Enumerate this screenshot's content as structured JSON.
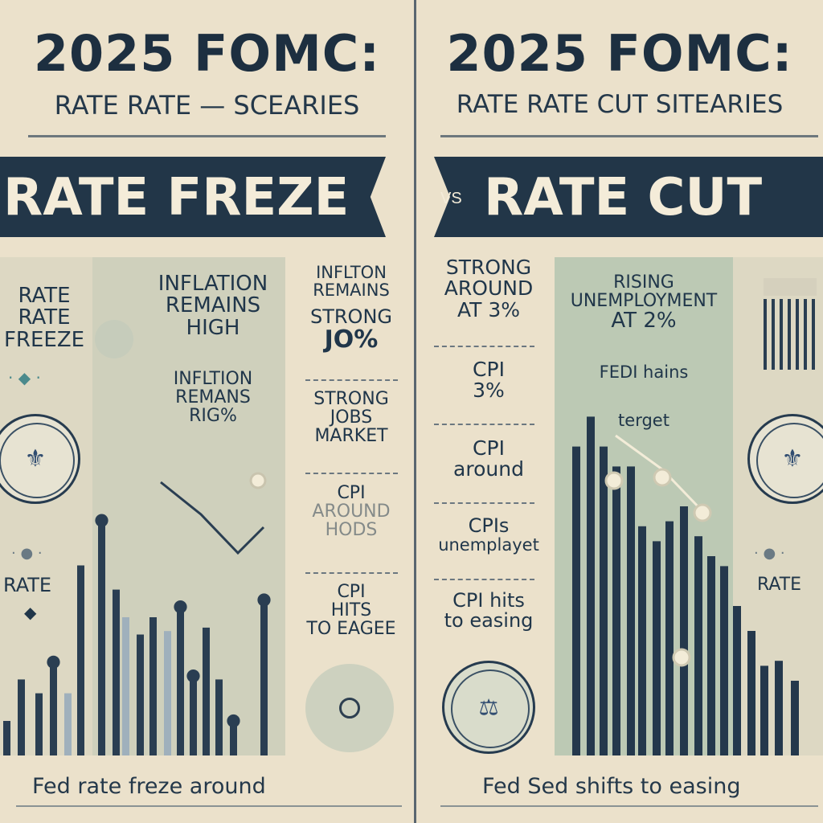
{
  "left": {
    "title": "2025 FOMC:",
    "subtitle": "RATE RATE — SCEARIES",
    "banner": "RATE FREZE",
    "side_label": [
      "RATE",
      "RATE",
      "FREEZE"
    ],
    "rate_label": "RATE",
    "center_texts": [
      "INFLATION",
      "REMAINS",
      "HIGH",
      "INFLTION",
      "REMANS",
      "RIG%"
    ],
    "column_blocks": [
      {
        "lines": [
          "INFLTON",
          "REMAINS",
          "STRONG",
          "JO%"
        ]
      },
      {
        "lines": [
          "STRONG",
          "JOBS",
          "MARKET"
        ]
      },
      {
        "lines": [
          "CPI",
          "AROUND",
          "HODS"
        ]
      },
      {
        "lines": [
          "CPI",
          "HITS",
          "TO EAGEE"
        ]
      }
    ],
    "footer": "Fed rate freze around",
    "bars": [
      0.1,
      0.22,
      0.18,
      0.27,
      0.18,
      0.55,
      0.68,
      0.48,
      0.4,
      0.35,
      0.4,
      0.36,
      0.43,
      0.23,
      0.37,
      0.22,
      0.1,
      0.45
    ],
    "colors": {
      "navy": "#223648",
      "bar": "#2a3e52",
      "bar_light": "#9fb0bc",
      "cream": "#ebe1cb"
    }
  },
  "right": {
    "title": "2025 FOMC:",
    "subtitle": "RATE RATE CUT SITEARIES",
    "vs": "VS",
    "banner": "RATE CUT",
    "column_blocks": [
      {
        "lines": [
          "STRONG",
          "AROUND",
          "AT 3%"
        ]
      },
      {
        "lines": [
          "CPI",
          "3%"
        ]
      },
      {
        "lines": [
          "CPI",
          "around"
        ]
      },
      {
        "lines": [
          "CPIs",
          "unemplayet"
        ]
      },
      {
        "lines": [
          "CPI hits",
          "to easing"
        ]
      }
    ],
    "center_texts": [
      "RISING",
      "UNEMPLOYMENT",
      "AT 2%",
      "FEDI hains",
      "terget"
    ],
    "rate_label": "RATE",
    "footer": "Fed Sed shifts  to easing",
    "bars": [
      0.62,
      0.68,
      0.62,
      0.58,
      0.58,
      0.46,
      0.43,
      0.47,
      0.5,
      0.44,
      0.4,
      0.38,
      0.3,
      0.25,
      0.18,
      0.19,
      0.15
    ],
    "colors": {
      "green_panel": "#bcc9b4",
      "bar": "#24384c"
    }
  }
}
